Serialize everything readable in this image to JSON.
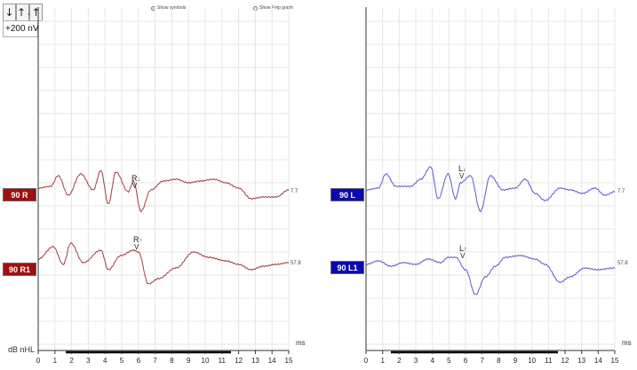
{
  "toolbar": {
    "down_arrow_label": "↓",
    "up_down_label": "↑↓",
    "up_arrow_label": "↑"
  },
  "scale_label": "+200 nV",
  "options": {
    "show_symbols": "Show symbols",
    "show_fmp_graph": "Show Fmp graph",
    "show_symbols_checked": true
  },
  "y_unit_label": "dB nHL",
  "x_unit_label": "ms",
  "x_ticks": [
    "0",
    "1",
    "2",
    "3",
    "4",
    "5",
    "6",
    "7",
    "8",
    "9",
    "10",
    "11",
    "12",
    "13",
    "14",
    "15"
  ],
  "colors": {
    "right": "#a01010",
    "left": "#0a0ab0",
    "right_trace": "#9b4040",
    "left_trace": "#5a5ad0",
    "grid": "#e6e6e6"
  },
  "right_panel": {
    "traces": [
      {
        "label": "90 R",
        "value": "7.7",
        "marker": "R",
        "marker_arrow": "↓",
        "marker_sub": "V"
      },
      {
        "label": "90 R1",
        "value": "57.8",
        "marker": "R",
        "marker_arrow": "↑",
        "marker_sub": "V"
      }
    ]
  },
  "left_panel": {
    "traces": [
      {
        "label": "90 L",
        "value": "7.7",
        "marker": "L",
        "marker_arrow": "↓",
        "marker_sub": "V"
      },
      {
        "label": "90 L1",
        "value": "57.8",
        "marker": "L",
        "marker_arrow": "↑",
        "marker_sub": "V"
      }
    ]
  }
}
